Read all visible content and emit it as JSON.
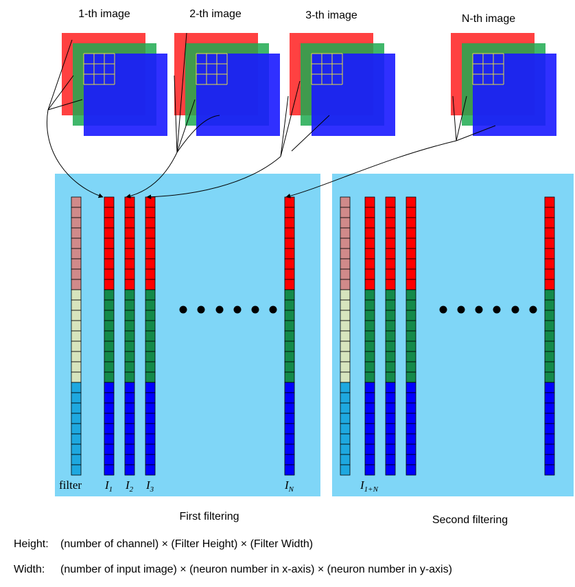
{
  "images": [
    {
      "label": "1-th image"
    },
    {
      "label": "2-th image"
    },
    {
      "label": "3-th image"
    },
    {
      "label": "N-th image"
    }
  ],
  "panels": [
    {
      "columns": [
        {
          "label": "filter"
        },
        {
          "base": "I",
          "sub": "1"
        },
        {
          "base": "I",
          "sub": "2"
        },
        {
          "base": "I",
          "sub": "3"
        },
        {
          "base": "I",
          "sub": "N"
        }
      ],
      "caption": "First filtering"
    },
    {
      "columns": [
        {
          "base": "I",
          "sub": "1+N"
        }
      ],
      "caption": "Second filtering"
    }
  ],
  "footer": {
    "height_label": "Height:",
    "height_text": "(number of channel) × (Filter Height) × (Filter Width)",
    "width_label": "Width:",
    "width_text": "(number of input image) × (neuron number in x-axis) × (neuron number in y-axis)"
  }
}
